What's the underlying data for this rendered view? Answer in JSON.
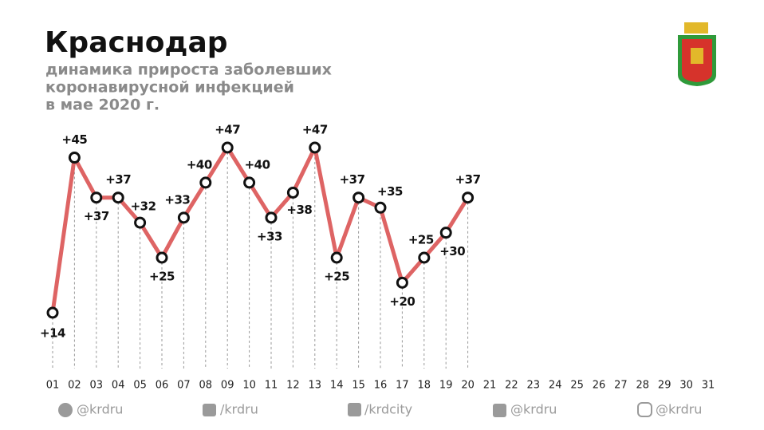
{
  "chart_data": {
    "type": "line",
    "title": "Краснодар",
    "subtitle": [
      "динамика прироста заболевших",
      "коронавирусной инфекцией",
      "в мае 2020 г."
    ],
    "categories": [
      "01",
      "02",
      "03",
      "04",
      "05",
      "06",
      "07",
      "08",
      "09",
      "10",
      "11",
      "12",
      "13",
      "14",
      "15",
      "16",
      "17",
      "18",
      "19",
      "20",
      "21",
      "22",
      "23",
      "24",
      "25",
      "26",
      "27",
      "28",
      "29",
      "30",
      "31"
    ],
    "series": [
      {
        "color": "#de6464",
        "values": [
          14,
          45,
          37,
          37,
          32,
          25,
          33,
          40,
          47,
          40,
          33,
          38,
          47,
          25,
          37,
          35,
          20,
          25,
          30,
          37,
          null,
          null,
          null,
          null,
          null,
          null,
          null,
          null,
          null,
          null,
          null
        ],
        "value_labels": [
          "+14",
          "+45",
          "+37",
          "+37",
          "+32",
          "+25",
          "+33",
          "+40",
          "+47",
          "+40",
          "+33",
          "+38",
          "+47",
          "+25",
          "+37",
          "+35",
          "+20",
          "+25",
          "+30",
          "+37",
          null,
          null,
          null,
          null,
          null,
          null,
          null,
          null,
          null,
          null,
          null
        ]
      }
    ]
  },
  "footer": [
    "@krdru",
    "/krdru",
    "/krdcity",
    "@krdru",
    "@krdru"
  ]
}
